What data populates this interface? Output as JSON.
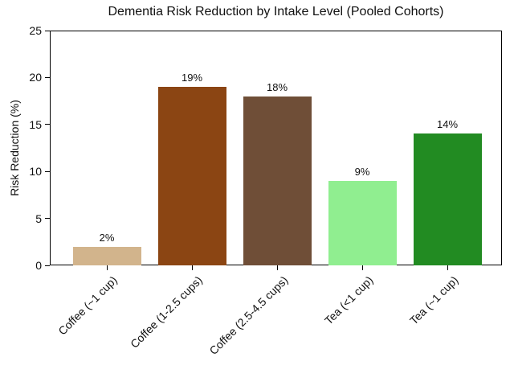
{
  "chart_data": {
    "type": "bar",
    "title": "Dementia Risk Reduction by Intake Level (Pooled Cohorts)",
    "xlabel": "",
    "ylabel": "Risk Reduction (%)",
    "categories": [
      "Coffee (~1 cup)",
      "Coffee (1-2.5 cups)",
      "Coffee (2.5-4.5 cups)",
      "Tea (<1 cup)",
      "Tea (~1 cup)"
    ],
    "values": [
      2,
      19,
      18,
      9,
      14
    ],
    "bar_labels": [
      "2%",
      "19%",
      "18%",
      "9%",
      "14%"
    ],
    "bar_colors": [
      "#D2B48C",
      "#8B4513",
      "#6F4E37",
      "#90EE90",
      "#228B22"
    ],
    "ylim": [
      0,
      25
    ],
    "yticks": [
      0,
      5,
      10,
      15,
      20,
      25
    ],
    "grid": false,
    "legend": null,
    "axis_color": "#000000",
    "text_color": "#111111"
  }
}
